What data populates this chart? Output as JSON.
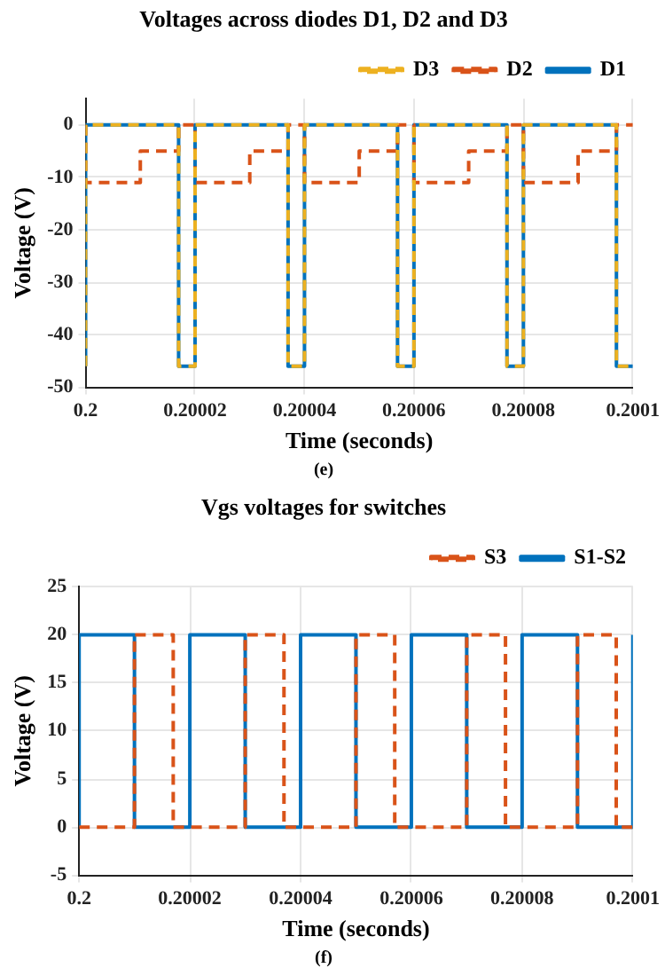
{
  "chart_data": [
    {
      "type": "step",
      "title": "Voltages across diodes D1, D2 and D3",
      "xlabel": "Time (seconds)",
      "ylabel": "Voltage (V)",
      "annotations": [
        "(e)"
      ],
      "xlim": [
        0.2,
        0.2001
      ],
      "xticks": [
        0.2,
        0.20002,
        0.20004,
        0.20006,
        0.20008,
        0.2001
      ],
      "ylim": [
        -50,
        5
      ],
      "yticks": [
        -50,
        -40,
        -30,
        -20,
        -10,
        0
      ],
      "grid": true,
      "legend": "top right",
      "series": [
        {
          "name": "D1",
          "color": "#0072bd",
          "line_style": "solid",
          "x": [
            0.2,
            0.2,
            0.200017,
            0.20002,
            0.200037,
            0.20004,
            0.200057,
            0.20006,
            0.200077,
            0.20008,
            0.200097,
            0.2001
          ],
          "values": [
            -46,
            0,
            -46,
            0,
            -46,
            0,
            -46,
            0,
            -46,
            0,
            -46,
            -46
          ]
        },
        {
          "name": "D2",
          "color": "#d95319",
          "line_style": "dashed",
          "x": [
            0.2,
            0.2,
            0.20001,
            0.200017,
            0.20002,
            0.20003,
            0.200037,
            0.20004,
            0.20005,
            0.200057,
            0.20006,
            0.20007,
            0.200077,
            0.20008,
            0.20009,
            0.200097,
            0.2001
          ],
          "values": [
            0,
            -11,
            -5,
            0,
            -11,
            -5,
            0,
            -11,
            -5,
            0,
            -11,
            -5,
            0,
            -11,
            -5,
            0,
            0
          ]
        },
        {
          "name": "D3",
          "color": "#edb120",
          "line_style": "dashed",
          "x": [
            0.2,
            0.2,
            0.200017,
            0.20002,
            0.200037,
            0.20004,
            0.200057,
            0.20006,
            0.200077,
            0.20008,
            0.200097,
            0.2001
          ],
          "values": [
            -46,
            0,
            -46,
            0,
            -46,
            0,
            -46,
            0,
            -46,
            0,
            -46,
            -46
          ]
        }
      ]
    },
    {
      "type": "step",
      "title": "Vgs voltages for switches",
      "xlabel": "Time (seconds)",
      "ylabel": "Voltage (V)",
      "annotations": [
        "(f)"
      ],
      "xlim": [
        0.2,
        0.2001
      ],
      "xticks": [
        0.2,
        0.20002,
        0.20004,
        0.20006,
        0.20008,
        0.2001
      ],
      "ylim": [
        -5,
        25
      ],
      "yticks": [
        -5,
        0,
        5,
        10,
        15,
        20,
        25
      ],
      "grid": true,
      "legend": "top right",
      "series": [
        {
          "name": "S1-S2",
          "color": "#0072bd",
          "line_style": "solid",
          "x": [
            0.2,
            0.2,
            0.20001,
            0.20002,
            0.20003,
            0.20004,
            0.20005,
            0.20006,
            0.20007,
            0.20008,
            0.20009,
            0.2001,
            0.2001
          ],
          "values": [
            0,
            20,
            0,
            20,
            0,
            20,
            0,
            20,
            0,
            20,
            0,
            20,
            20
          ]
        },
        {
          "name": "S3",
          "color": "#d95319",
          "line_style": "dashed",
          "x": [
            0.2,
            0.20001,
            0.200017,
            0.20003,
            0.200037,
            0.20005,
            0.200057,
            0.20007,
            0.200077,
            0.20009,
            0.200097,
            0.2001
          ],
          "values": [
            0,
            20,
            0,
            20,
            0,
            20,
            0,
            20,
            0,
            20,
            0,
            0
          ]
        }
      ]
    }
  ]
}
